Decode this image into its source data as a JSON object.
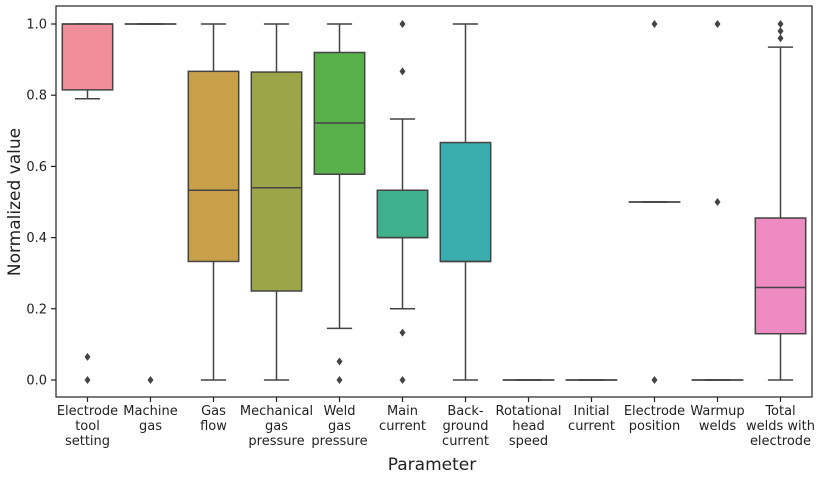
{
  "chart_data": {
    "type": "boxplot",
    "title": "",
    "xlabel": "Parameter",
    "ylabel": "Normalized value",
    "ylim": [
      -0.04,
      1.04
    ],
    "yticks": [
      "0.0",
      "0.2",
      "0.4",
      "0.6",
      "0.8",
      "1.0"
    ],
    "grid": false,
    "series": [
      {
        "name": "Electrode tool setting",
        "label_lines": [
          "Electrode",
          "tool",
          "setting"
        ],
        "color": "#f08f9a",
        "q1": 0.815,
        "median": 1.0,
        "q3": 1.0,
        "whisker_low": 0.79,
        "whisker_high": 1.0,
        "outliers": [
          0.065,
          0.0
        ]
      },
      {
        "name": "Machine gas",
        "label_lines": [
          "Machine",
          "gas"
        ],
        "color": "#f19c86",
        "q1": 1.0,
        "median": 1.0,
        "q3": 1.0,
        "whisker_low": 1.0,
        "whisker_high": 1.0,
        "outliers": [
          0.0
        ]
      },
      {
        "name": "Gas flow",
        "label_lines": [
          "Gas",
          "flow"
        ],
        "color": "#c9a04a",
        "q1": 0.333,
        "median": 0.533,
        "q3": 0.867,
        "whisker_low": 0.0,
        "whisker_high": 1.0,
        "outliers": []
      },
      {
        "name": "Mechanical gas pressure",
        "label_lines": [
          "Mechanical",
          "gas",
          "pressure"
        ],
        "color": "#9ca548",
        "q1": 0.25,
        "median": 0.54,
        "q3": 0.865,
        "whisker_low": 0.0,
        "whisker_high": 1.0,
        "outliers": []
      },
      {
        "name": "Weld gas pressure",
        "label_lines": [
          "Weld",
          "gas",
          "pressure"
        ],
        "color": "#58b14a",
        "q1": 0.578,
        "median": 0.722,
        "q3": 0.92,
        "whisker_low": 0.145,
        "whisker_high": 1.0,
        "outliers": [
          0.052,
          0.0
        ]
      },
      {
        "name": "Main current",
        "label_lines": [
          "Main",
          "current"
        ],
        "color": "#3fb18c",
        "q1": 0.4,
        "median": 0.4,
        "q3": 0.533,
        "whisker_low": 0.2,
        "whisker_high": 0.733,
        "outliers": [
          1.0,
          0.867,
          0.133,
          0.0
        ]
      },
      {
        "name": "Back-ground current",
        "label_lines": [
          "Back-",
          "ground",
          "current"
        ],
        "color": "#3aaeae",
        "q1": 0.333,
        "median": 0.333,
        "q3": 0.667,
        "whisker_low": 0.0,
        "whisker_high": 1.0,
        "outliers": []
      },
      {
        "name": "Rotational head speed",
        "label_lines": [
          "Rotational",
          "head",
          "speed"
        ],
        "color": "#3fa9c7",
        "q1": 0.0,
        "median": 0.0,
        "q3": 0.0,
        "whisker_low": 0.0,
        "whisker_high": 0.0,
        "outliers": []
      },
      {
        "name": "Initial current",
        "label_lines": [
          "Initial",
          "current"
        ],
        "color": "#6fa3e0",
        "q1": 0.0,
        "median": 0.0,
        "q3": 0.0,
        "whisker_low": 0.0,
        "whisker_high": 0.0,
        "outliers": []
      },
      {
        "name": "Electrode position",
        "label_lines": [
          "Electrode",
          "position"
        ],
        "color": "#b192e6",
        "q1": 0.5,
        "median": 0.5,
        "q3": 0.5,
        "whisker_low": 0.5,
        "whisker_high": 0.5,
        "outliers": [
          1.0,
          0.0
        ]
      },
      {
        "name": "Warmup welds",
        "label_lines": [
          "Warmup",
          "welds"
        ],
        "color": "#e58be0",
        "q1": 0.0,
        "median": 0.0,
        "q3": 0.0,
        "whisker_low": 0.0,
        "whisker_high": 0.0,
        "outliers": [
          1.0,
          0.5
        ]
      },
      {
        "name": "Total welds with electrode",
        "label_lines": [
          "Total",
          "welds with",
          "electrode"
        ],
        "color": "#ef8bc3",
        "q1": 0.13,
        "median": 0.26,
        "q3": 0.455,
        "whisker_low": 0.0,
        "whisker_high": 0.935,
        "outliers": [
          1.0,
          0.98,
          0.96
        ]
      }
    ]
  }
}
